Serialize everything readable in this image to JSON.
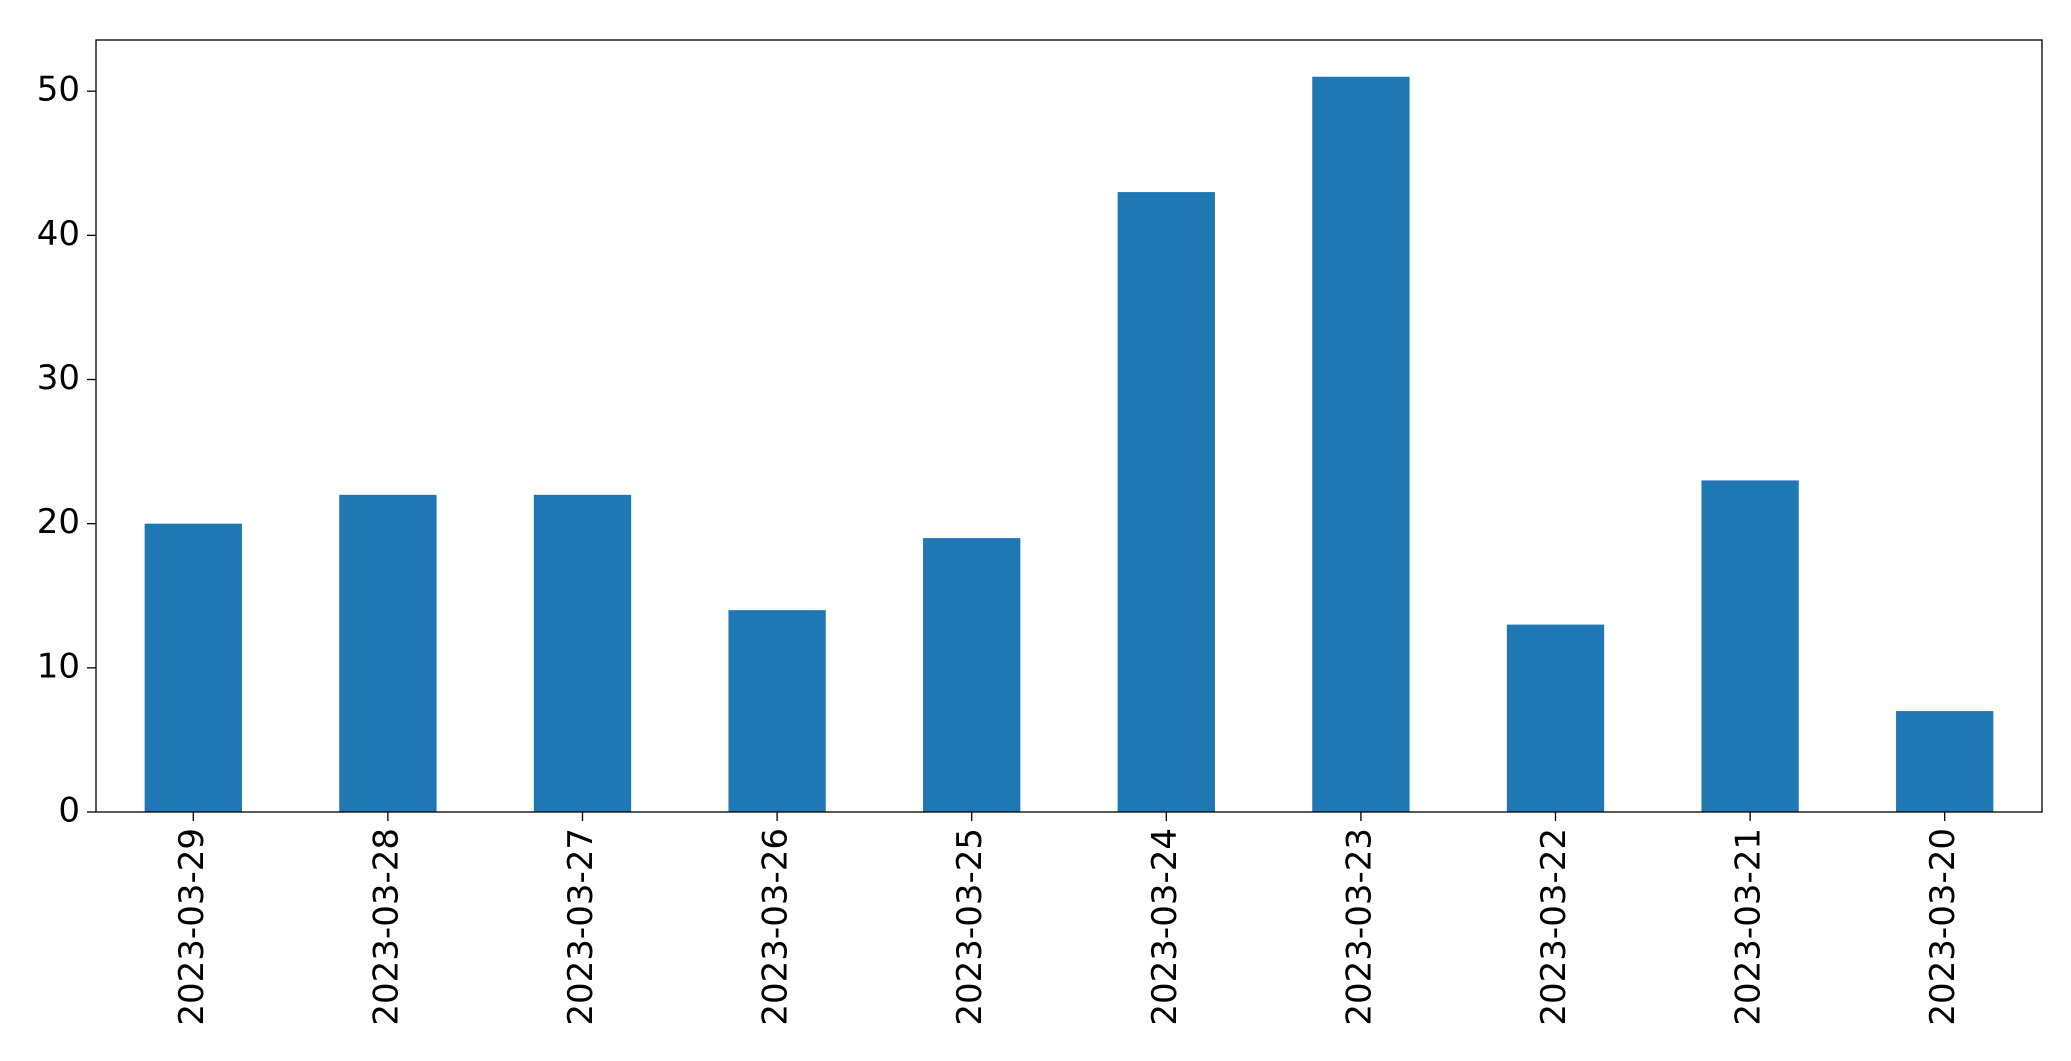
{
  "chart_data": {
    "type": "bar",
    "categories": [
      "2023-03-29",
      "2023-03-28",
      "2023-03-27",
      "2023-03-26",
      "2023-03-25",
      "2023-03-24",
      "2023-03-23",
      "2023-03-22",
      "2023-03-21",
      "2023-03-20"
    ],
    "values": [
      20,
      22,
      22,
      14,
      19,
      43,
      51,
      13,
      23,
      7
    ],
    "color": "#1f77b4",
    "ylim": [
      0,
      53.55
    ],
    "yticks": [
      0,
      10,
      20,
      30,
      40,
      50
    ],
    "grid": false
  }
}
